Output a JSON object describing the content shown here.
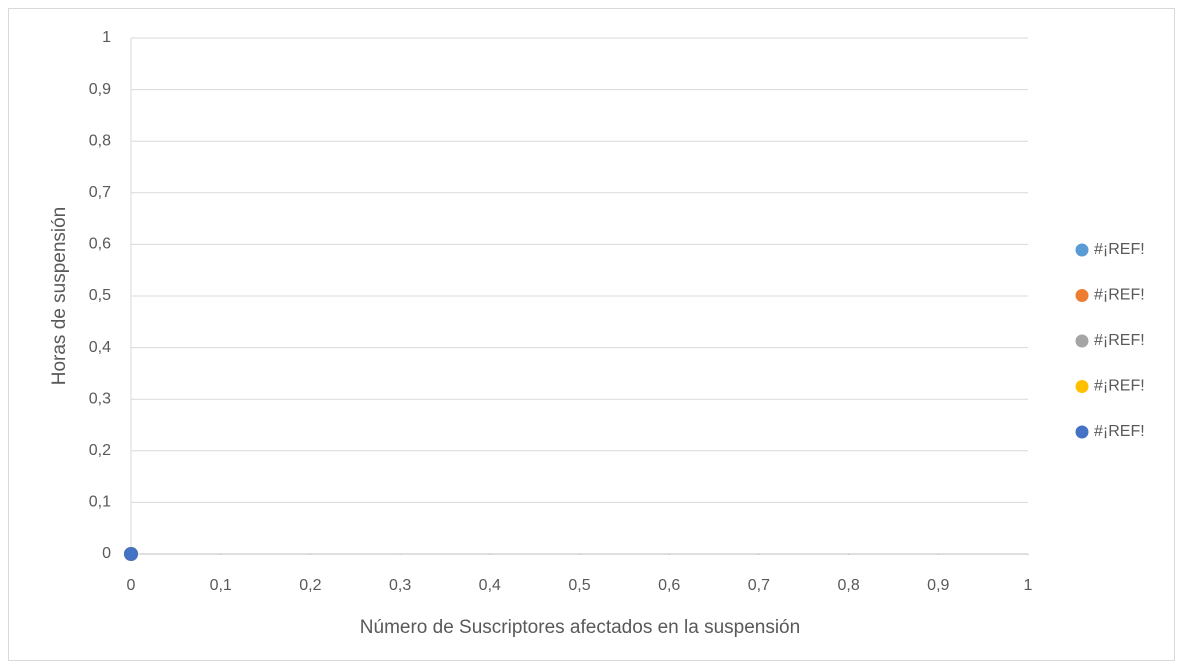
{
  "chart_data": {
    "type": "scatter",
    "x_label": "Número de Suscriptores afectados en la suspensión",
    "y_label": "Horas de suspensión",
    "series": [
      {
        "name": "#¡REF!",
        "color": "#5b9bd5",
        "x": [
          0
        ],
        "values": [
          0
        ]
      },
      {
        "name": "#¡REF!",
        "color": "#ed7d31",
        "x": [
          0
        ],
        "values": [
          0
        ]
      },
      {
        "name": "#¡REF!",
        "color": "#a5a5a5",
        "x": [
          0
        ],
        "values": [
          0
        ]
      },
      {
        "name": "#¡REF!",
        "color": "#ffc000",
        "x": [
          0
        ],
        "values": [
          0
        ]
      },
      {
        "name": "#¡REF!",
        "color": "#4472c4",
        "x": [
          0
        ],
        "values": [
          0
        ]
      }
    ],
    "xlim": [
      0,
      1
    ],
    "ylim": [
      0,
      1
    ],
    "xticks": [
      0,
      {
        "value": 0.1,
        "label": "0,1"
      },
      {
        "value": 0.2,
        "label": "0,2"
      },
      {
        "value": 0.3,
        "label": "0,3"
      },
      {
        "value": 0.4,
        "label": "0,4"
      },
      {
        "value": 0.5,
        "label": "0,5"
      },
      {
        "value": 0.6,
        "label": "0,6"
      },
      {
        "value": 0.7,
        "label": "0,7"
      },
      {
        "value": 0.8,
        "label": "0,8"
      },
      {
        "value": 0.9,
        "label": "0,9"
      },
      1
    ],
    "yticks": [
      0,
      {
        "value": 0.1,
        "label": "0,1"
      },
      {
        "value": 0.2,
        "label": "0,2"
      },
      {
        "value": 0.3,
        "label": "0,3"
      },
      {
        "value": 0.4,
        "label": "0,4"
      },
      {
        "value": 0.5,
        "label": "0,5"
      },
      {
        "value": 0.6,
        "label": "0,6"
      },
      {
        "value": 0.7,
        "label": "0,7"
      },
      {
        "value": 0.8,
        "label": "0,8"
      },
      {
        "value": 0.9,
        "label": "0,9"
      },
      1
    ],
    "grid": true,
    "legend": "right"
  }
}
